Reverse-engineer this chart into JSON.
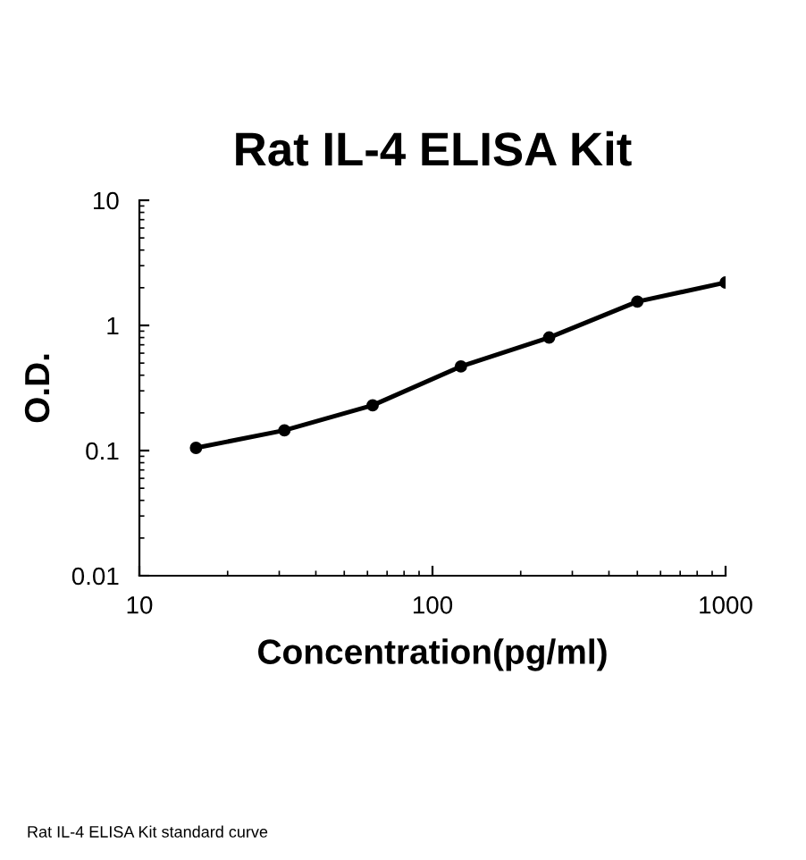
{
  "chart_data": {
    "type": "scatter",
    "title": "Rat IL-4 ELISA Kit",
    "xlabel": "Concentration(pg/ml)",
    "ylabel": "O.D.",
    "annotations": [
      "Rat IL-4 ELISA Kit standard curve"
    ],
    "log": "xy",
    "grid": false,
    "legend": false,
    "marker": "circle",
    "xlim": [
      10,
      1000
    ],
    "xticks": [
      10,
      100,
      1000
    ],
    "ylim": [
      0.01,
      10
    ],
    "yticks": [
      {
        "value": 0.01,
        "label": "0.01"
      },
      {
        "value": 0.1,
        "label": "0.1"
      },
      1,
      10
    ],
    "x": [
      15.6,
      31.25,
      62.5,
      125,
      250,
      500,
      1000
    ],
    "series": [
      {
        "type": "line",
        "color": "#000000",
        "marker": "none",
        "line_style": "solid",
        "values": [
          0.105,
          0.145,
          0.23,
          0.47,
          0.8,
          1.55,
          2.2
        ]
      },
      {
        "color": "#000000",
        "values": [
          0.105,
          0.145,
          0.23,
          0.47,
          0.8,
          1.55,
          2.2
        ]
      }
    ]
  }
}
